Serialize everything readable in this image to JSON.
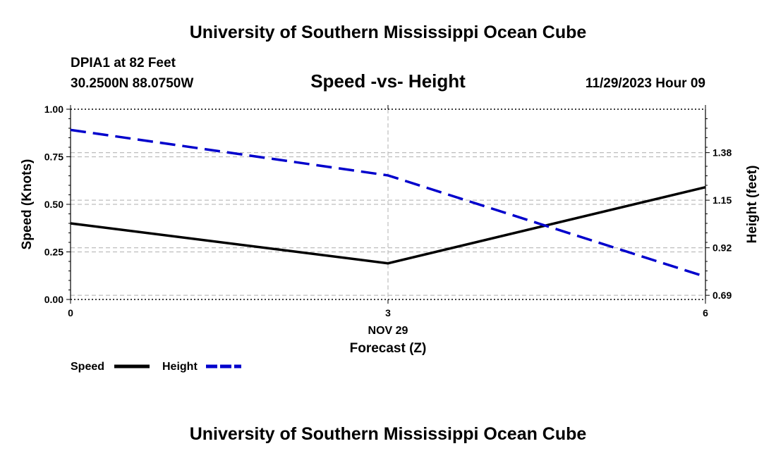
{
  "header": {
    "title": "University of Southern Mississippi Ocean Cube",
    "station": "DPIA1 at 82 Feet",
    "coords": "30.2500N  88.0750W",
    "chart_title": "Speed -vs- Height",
    "datetime": "11/29/2023 Hour 09"
  },
  "footer": {
    "title": "University of Southern Mississippi Ocean Cube"
  },
  "colors": {
    "speed": "#000000",
    "height": "#0000cc",
    "grid": "#bdbdbd"
  },
  "chart_data": {
    "type": "line",
    "title": "Speed -vs- Height",
    "xlabel": "Forecast (Z)",
    "xdate_label": "NOV 29",
    "x": [
      0,
      3,
      6
    ],
    "x_ticks": [
      "0",
      "3",
      "6"
    ],
    "xlim": [
      0,
      6
    ],
    "ylabel": "Speed (Knots)",
    "ylim": [
      0,
      1
    ],
    "y_ticks": [
      "0.00",
      "0.25",
      "0.50",
      "0.75",
      "1.00"
    ],
    "y2label": "Height (feet)",
    "y2lim": [
      0.67,
      1.59
    ],
    "y2_ticks": [
      "0.69",
      "0.92",
      "1.15",
      "1.38"
    ],
    "series": [
      {
        "name": "Speed",
        "axis": "left",
        "style": "solid",
        "values": [
          0.4,
          0.19,
          0.59
        ]
      },
      {
        "name": "Height",
        "axis": "right",
        "style": "dashed",
        "values": [
          1.49,
          1.27,
          0.78
        ]
      }
    ],
    "legend": [
      {
        "label": "Speed",
        "style": "solid"
      },
      {
        "label": "Height",
        "style": "dashed"
      }
    ],
    "legend_position": "bottom-left"
  }
}
